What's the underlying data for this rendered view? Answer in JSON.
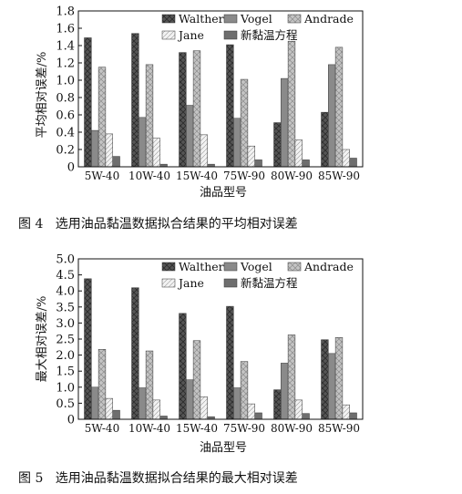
{
  "chart_data": [
    {
      "type": "bar",
      "caption": "图 4   选用油品黏温数据拟合结果的平均相对误差",
      "xlabel": "油品型号",
      "ylabel": "平均相对误差/%",
      "ylim": [
        0,
        1.8
      ],
      "yticks": [
        "0",
        "0.2",
        "0.4",
        "0.6",
        "0.8",
        "1.0",
        "1.2",
        "1.4",
        "1.6",
        "1.8"
      ],
      "yticks_values": [
        0,
        0.2,
        0.4,
        0.6,
        0.8,
        1.0,
        1.2,
        1.4,
        1.6,
        1.8
      ],
      "categories": [
        "5W-40",
        "10W-40",
        "15W-40",
        "75W-90",
        "80W-90",
        "85W-90"
      ],
      "legend_position": "top-right",
      "grid": false,
      "series": [
        {
          "name": "Walther",
          "color": "#555555",
          "pattern": "cross",
          "values": [
            1.49,
            1.54,
            1.32,
            1.41,
            0.51,
            0.63
          ]
        },
        {
          "name": "Vogel",
          "color": "#8a8a8a",
          "pattern": "solid",
          "values": [
            0.42,
            0.57,
            0.71,
            0.56,
            1.02,
            1.18
          ]
        },
        {
          "name": "Andrade",
          "color": "#c4c4c4",
          "pattern": "cross",
          "values": [
            1.15,
            1.18,
            1.34,
            1.01,
            1.45,
            1.38
          ]
        },
        {
          "name": "Jane",
          "color": "#f2f2f2",
          "pattern": "diag",
          "values": [
            0.38,
            0.33,
            0.37,
            0.24,
            0.31,
            0.2
          ]
        },
        {
          "name": "新黏温方程",
          "color": "#6e6e6e",
          "pattern": "solid",
          "values": [
            0.12,
            0.03,
            0.03,
            0.08,
            0.08,
            0.1
          ]
        }
      ]
    },
    {
      "type": "bar",
      "caption": "图 5   选用油品黏温数据拟合结果的最大相对误差",
      "xlabel": "油品型号",
      "ylabel": "最大相对误差/%",
      "ylim": [
        0,
        5.0
      ],
      "yticks": [
        "0",
        "0.5",
        "1.0",
        "1.5",
        "2.0",
        "2.5",
        "3.0",
        "3.5",
        "4.0",
        "4.5",
        "5.0"
      ],
      "yticks_values": [
        0,
        0.5,
        1.0,
        1.5,
        2.0,
        2.5,
        3.0,
        3.5,
        4.0,
        4.5,
        5.0
      ],
      "categories": [
        "5W-40",
        "10W-40",
        "15W-40",
        "75W-90",
        "80W-90",
        "85W-90"
      ],
      "legend_position": "top-right",
      "grid": false,
      "series": [
        {
          "name": "Walther",
          "color": "#555555",
          "pattern": "cross",
          "values": [
            4.38,
            4.1,
            3.3,
            3.52,
            0.92,
            2.48
          ]
        },
        {
          "name": "Vogel",
          "color": "#8a8a8a",
          "pattern": "solid",
          "values": [
            1.0,
            0.98,
            1.23,
            0.98,
            1.75,
            2.05
          ]
        },
        {
          "name": "Andrade",
          "color": "#c4c4c4",
          "pattern": "cross",
          "values": [
            2.18,
            2.13,
            2.45,
            1.8,
            2.63,
            2.55
          ]
        },
        {
          "name": "Jane",
          "color": "#f2f2f2",
          "pattern": "diag",
          "values": [
            0.65,
            0.6,
            0.7,
            0.48,
            0.6,
            0.45
          ]
        },
        {
          "name": "新黏温方程",
          "color": "#6e6e6e",
          "pattern": "solid",
          "values": [
            0.28,
            0.1,
            0.08,
            0.2,
            0.18,
            0.2
          ]
        }
      ]
    }
  ]
}
